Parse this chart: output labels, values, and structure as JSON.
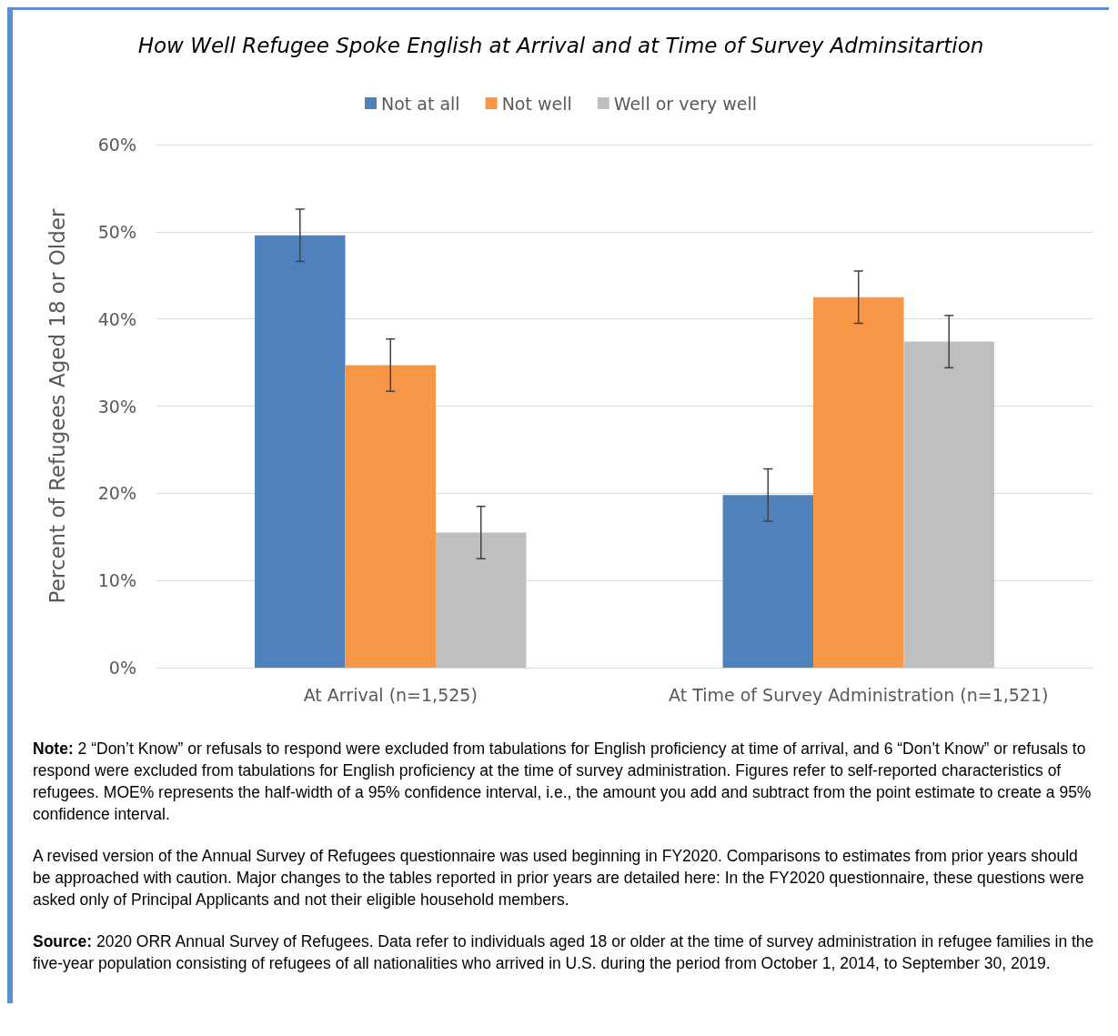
{
  "chart_data": {
    "type": "bar",
    "title": "How Well Refugee Spoke English at Arrival and at Time of Survey Adminsitartion",
    "ylabel": "Percent of Refugees Aged 18 or Older",
    "categories": [
      "At Arrival (n=1,525)",
      "At Time of Survey Administration (n=1,521)"
    ],
    "series": [
      {
        "name": "Not at all",
        "color": "#4f81bd",
        "values": [
          49.6,
          19.8
        ],
        "errors": [
          3,
          3
        ]
      },
      {
        "name": "Not well",
        "color": "#f79646",
        "values": [
          34.7,
          42.5
        ],
        "errors": [
          3,
          3
        ]
      },
      {
        "name": "Well or very well",
        "color": "#bfbfbf",
        "values": [
          15.5,
          37.4
        ],
        "errors": [
          3,
          3
        ]
      }
    ],
    "ylim": [
      0,
      60
    ],
    "yticks": [
      {
        "value": 0,
        "label": "0%"
      },
      {
        "value": 10,
        "label": "10%"
      },
      {
        "value": 20,
        "label": "20%"
      },
      {
        "value": 30,
        "label": "30%"
      },
      {
        "value": 40,
        "label": "40%"
      },
      {
        "value": 50,
        "label": "50%"
      },
      {
        "value": 60,
        "label": "60%"
      }
    ],
    "grid": "y",
    "legend": "top",
    "annotations": [
      "Note: 2 “Don’t Know” or refusals to respond were excluded from tabulations for English proficiency at time of arrival, and 6 “Don’t Know” or refusals to respond were excluded from tabulations for English proficiency at the time of survey administration. Figures refer to self-reported characteristics of refugees. MOE% represents the half-width of a 95% confidence interval, i.e., the amount you add and subtract from the point estimate to create a 95% confidence interval.",
      "A revised version of the Annual Survey of Refugees questionnaire was used beginning in FY2020. Comparisons to estimates from prior years should be approached with caution. Major changes to the tables reported in prior years are detailed here: In the FY2020 questionnaire, these questions were asked only of Principal Applicants and not their eligible household members.",
      "Source: 2020 ORR Annual Survey of Refugees. Data refer to individuals aged 18 or older at the time of survey administration in refugee families in the five-year population consisting of refugees of all nationalities who arrived in U.S. during the period from October 1, 2014, to September 30, 2019."
    ]
  }
}
